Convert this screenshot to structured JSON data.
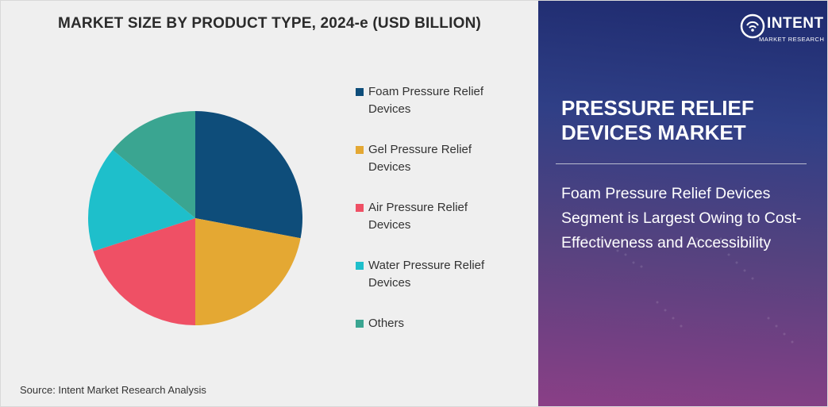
{
  "chart_data": {
    "type": "pie",
    "title": "MARKET SIZE BY PRODUCT TYPE, 2024-e (USD BILLION)",
    "categories": [
      "Foam Pressure Relief Devices",
      "Gel Pressure Relief Devices",
      "Air Pressure Relief Devices",
      "Water Pressure Relief Devices",
      "Others"
    ],
    "values": [
      28,
      22,
      20,
      16,
      14
    ],
    "colors": [
      "#0e4d7a",
      "#e4a833",
      "#ef5065",
      "#1ebfcb",
      "#3aa591"
    ],
    "legend_position": "right"
  },
  "legend": {
    "items": [
      {
        "line1": "Foam Pressure Relief",
        "line2": "Devices"
      },
      {
        "line1": "Gel Pressure Relief",
        "line2": "Devices"
      },
      {
        "line1": "Air Pressure Relief",
        "line2": "Devices"
      },
      {
        "line1": "Water Pressure Relief",
        "line2": "Devices"
      },
      {
        "line1": "Others",
        "line2": ""
      }
    ]
  },
  "source": "Source: Intent Market Research Analysis",
  "brand": {
    "name": "INTENT",
    "tagline": "MARKET RESEARCH",
    "logo_icon": "wifi-signal-icon"
  },
  "panel": {
    "title": "PRESSURE RELIEF DEVICES MARKET",
    "description": "Foam Pressure Relief Devices Segment is Largest Owing to Cost-Effectiveness and Accessibility",
    "accent_top": "#1e2a6e",
    "accent_bottom": "#8a3f86"
  }
}
